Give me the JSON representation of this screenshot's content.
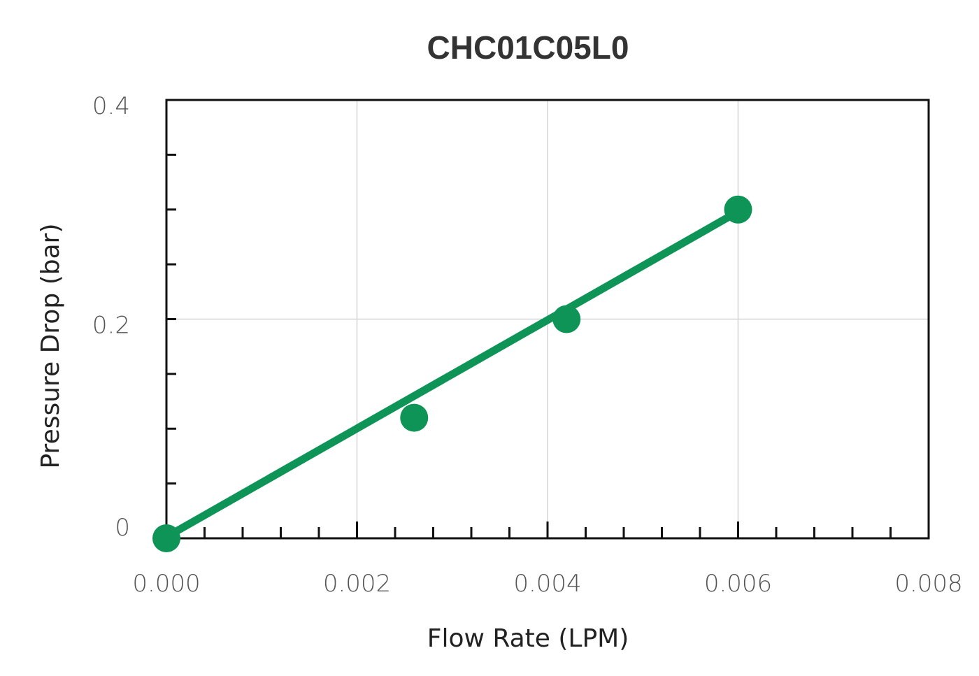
{
  "chart_data": {
    "type": "line",
    "title": "CHC01C05L0",
    "xlabel": "Flow Rate (LPM)",
    "ylabel": "Pressure Drop (bar)",
    "xlim": [
      0,
      0.008
    ],
    "ylim": [
      0,
      0.4
    ],
    "x_ticks": [
      0,
      0.002,
      0.004,
      0.006,
      0.008
    ],
    "x_tick_labels": [
      "0.000",
      "0.002",
      "0.004",
      "0.006",
      "0.008"
    ],
    "y_ticks": [
      0,
      0.2,
      0.4
    ],
    "y_tick_labels": [
      "0",
      "0.2",
      "0.4"
    ],
    "grid": true,
    "series": [
      {
        "points": {
          "x": [
            0,
            0.0026,
            0.0042,
            0.006
          ],
          "y": [
            0,
            0.11,
            0.2,
            0.3
          ]
        },
        "fit_line": {
          "x": [
            0,
            0.006
          ],
          "y": [
            0,
            0.3
          ]
        },
        "color": "#0e9456"
      }
    ]
  }
}
